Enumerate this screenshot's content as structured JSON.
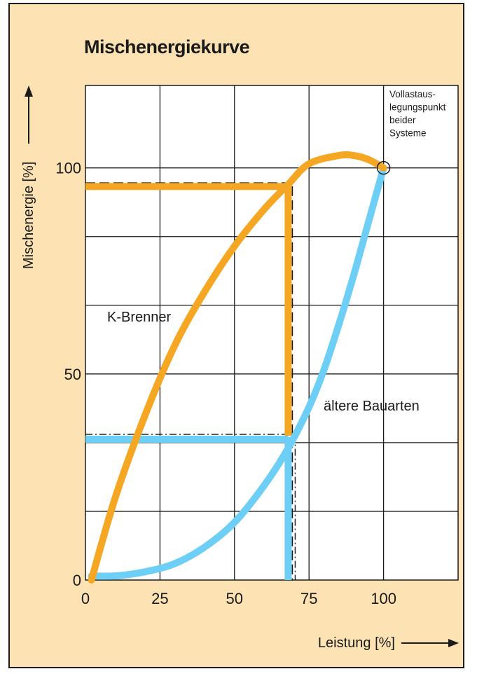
{
  "chart_data": {
    "type": "line",
    "title": "Mischenergiekurve",
    "xlabel": "Leistung [%]",
    "ylabel": "Mischenergie [%]",
    "xlim": [
      0,
      125
    ],
    "ylim": [
      0,
      120
    ],
    "x_ticks": [
      0,
      25,
      50,
      75,
      100
    ],
    "y_ticks": [
      0,
      50,
      100
    ],
    "grid": true,
    "colors": {
      "k_brenner": "#f5a623",
      "aeltere": "#6dcff6",
      "background": "#fde3b3",
      "grid": "#1a1a1a"
    },
    "series": [
      {
        "name": "K-Brenner",
        "x": [
          2,
          10,
          20,
          30,
          40,
          50,
          60,
          68,
          75,
          85,
          90,
          95,
          100
        ],
        "values": [
          0,
          20,
          40,
          57,
          70,
          81,
          90,
          96,
          101,
          103,
          103,
          102,
          100
        ]
      },
      {
        "name": "ältere Bauarten",
        "x": [
          2,
          10,
          20,
          30,
          40,
          50,
          60,
          68,
          75,
          80,
          85,
          90,
          95,
          100
        ],
        "values": [
          1,
          1,
          2,
          4,
          8,
          14,
          23,
          32,
          42,
          51,
          62,
          74,
          87,
          100
        ]
      }
    ],
    "reference_lines": [
      {
        "series": "K-Brenner",
        "x": 68,
        "y_from": 35,
        "y_to": 96
      },
      {
        "series": "ältere Bauarten",
        "x": 68,
        "y_from": 0,
        "y_to": 34
      }
    ],
    "annotations": [
      {
        "text_lines": [
          "Vollastaus-",
          "legungspunkt",
          "beider",
          "Systeme"
        ],
        "x": 100,
        "y": 100
      }
    ]
  }
}
